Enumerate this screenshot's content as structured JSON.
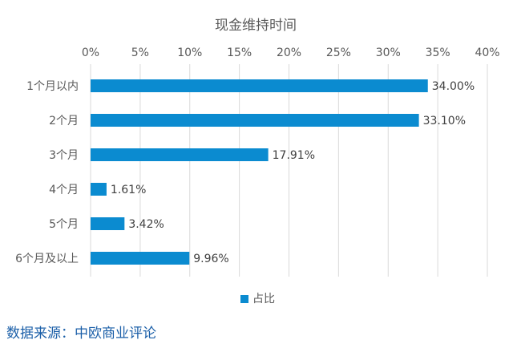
{
  "chart_data": {
    "type": "bar",
    "orientation": "horizontal",
    "title": "现金维持时间",
    "categories": [
      "1个月以内",
      "2个月",
      "3个月",
      "4个月",
      "5个月",
      "6个月及以上"
    ],
    "series": [
      {
        "name": "占比",
        "values": [
          34.0,
          33.1,
          17.91,
          1.61,
          3.42,
          9.96
        ],
        "color": "#0b8bd0"
      }
    ],
    "data_labels": [
      "34.00%",
      "33.10%",
      "17.91%",
      "1.61%",
      "3.42%",
      "9.96%"
    ],
    "x_ticks": [
      "0%",
      "5%",
      "10%",
      "15%",
      "20%",
      "25%",
      "30%",
      "35%",
      "40%"
    ],
    "xlim": [
      0,
      40
    ],
    "x_axis_position": "top",
    "grid": true,
    "grid_direction": "vertical",
    "legend_position": "bottom-center"
  },
  "source": "数据来源：中欧商业评论"
}
